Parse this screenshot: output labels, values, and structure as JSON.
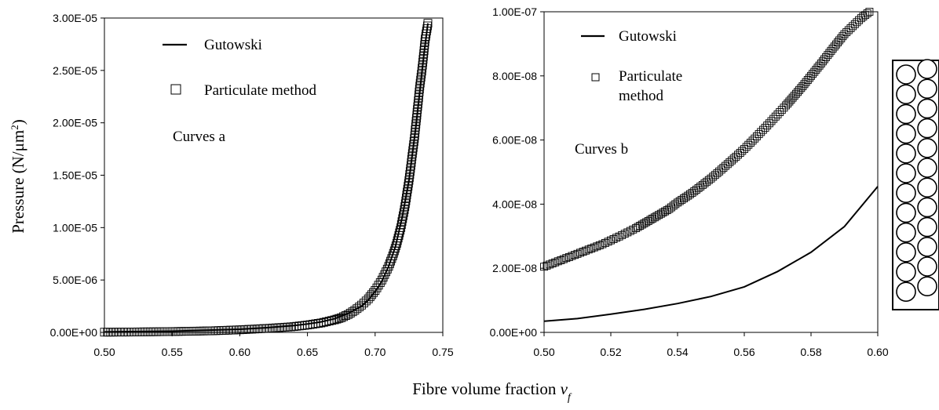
{
  "figure": {
    "xlabel_main": "Fibre volume fraction ",
    "xlabel_var": "v",
    "xlabel_sub": "f",
    "ylabel_main": "Pressure (N/μm",
    "ylabel_sup": "2",
    "ylabel_end": ")"
  },
  "chart_data": [
    {
      "type": "line",
      "annotation": "Curves a",
      "xlim": [
        0.5,
        0.75
      ],
      "ylim": [
        0,
        3e-05
      ],
      "xticks": [
        "0.50",
        "0.55",
        "0.60",
        "0.65",
        "0.70",
        "0.75"
      ],
      "yticks": [
        "0.00E+00",
        "5.00E-06",
        "1.00E-05",
        "1.50E-05",
        "2.00E-05",
        "2.50E-05",
        "3.00E-05"
      ],
      "grid": false,
      "legend_position": "top-left",
      "series": [
        {
          "name": "Gutowski",
          "style": "solid-line",
          "x": [
            0.5,
            0.55,
            0.6,
            0.62,
            0.64,
            0.65,
            0.66,
            0.67,
            0.68,
            0.69,
            0.695,
            0.7,
            0.705,
            0.71,
            0.715,
            0.72,
            0.725,
            0.73,
            0.733,
            0.736,
            0.739
          ],
          "y": [
            4.5e-08,
            1.1e-07,
            3e-07,
            4.5e-07,
            6.5e-07,
            8e-07,
            1e-06,
            1.3e-06,
            1.8e-06,
            2.5e-06,
            3.1e-06,
            3.9e-06,
            4.9e-06,
            6.3e-06,
            8.2e-06,
            1.1e-05,
            1.45e-05,
            1.95e-05,
            2.3e-05,
            2.65e-05,
            2.95e-05
          ]
        },
        {
          "name": "Particulate method",
          "style": "open-square-markers",
          "x": [
            0.5,
            0.52,
            0.55,
            0.58,
            0.6,
            0.62,
            0.64,
            0.65,
            0.66,
            0.67,
            0.675,
            0.68,
            0.685,
            0.69,
            0.695,
            0.7,
            0.705,
            0.71,
            0.713,
            0.716,
            0.719,
            0.722,
            0.725,
            0.727,
            0.729,
            0.731,
            0.733,
            0.735,
            0.737,
            0.739
          ],
          "y": [
            2.1e-08,
            3.5e-08,
            8e-08,
            1.5e-07,
            2.5e-07,
            3.8e-07,
            5.5e-07,
            7e-07,
            9e-07,
            1.2e-06,
            1.4e-06,
            1.7e-06,
            2.1e-06,
            2.6e-06,
            3.2e-06,
            4e-06,
            5e-06,
            6.3e-06,
            7.3e-06,
            8.5e-06,
            1e-05,
            1.2e-05,
            1.45e-05,
            1.65e-05,
            1.85e-05,
            2.1e-05,
            2.35e-05,
            2.55e-05,
            2.8e-05,
            2.95e-05
          ]
        }
      ]
    },
    {
      "type": "line",
      "annotation": "Curves b",
      "xlim": [
        0.5,
        0.6
      ],
      "ylim": [
        0,
        1e-07
      ],
      "xticks": [
        "0.50",
        "0.52",
        "0.54",
        "0.56",
        "0.58",
        "0.60"
      ],
      "yticks": [
        "0.00E+00",
        "2.00E-08",
        "4.00E-08",
        "6.00E-08",
        "8.00E-08",
        "1.00E-07"
      ],
      "grid": false,
      "legend_position": "top-left",
      "series": [
        {
          "name": "Gutowski",
          "style": "solid-line",
          "x": [
            0.5,
            0.51,
            0.52,
            0.53,
            0.54,
            0.55,
            0.56,
            0.57,
            0.58,
            0.59,
            0.6
          ],
          "y": [
            3.5e-09,
            4.3e-09,
            5.7e-09,
            7.2e-09,
            9e-09,
            1.12e-08,
            1.42e-08,
            1.9e-08,
            2.5e-08,
            3.3e-08,
            4.55e-08
          ]
        },
        {
          "name": "Particulate method",
          "style": "open-square-markers",
          "x": [
            0.5,
            0.5025,
            0.505,
            0.5075,
            0.51,
            0.5125,
            0.515,
            0.5175,
            0.52,
            0.5225,
            0.525,
            0.5275,
            0.53,
            0.5325,
            0.535,
            0.5375,
            0.54,
            0.5425,
            0.545,
            0.5475,
            0.55,
            0.5525,
            0.555,
            0.5575,
            0.56,
            0.5625,
            0.565,
            0.5675,
            0.57,
            0.5725,
            0.575,
            0.5775,
            0.58,
            0.5825,
            0.585,
            0.5875,
            0.59,
            0.5925,
            0.595,
            0.5975
          ],
          "y": [
            2.05e-08,
            2.15e-08,
            2.25e-08,
            2.35e-08,
            2.45e-08,
            2.55e-08,
            2.65e-08,
            2.75e-08,
            2.87e-08,
            2.99e-08,
            3.12e-08,
            3.25e-08,
            3.4e-08,
            3.55e-08,
            3.7e-08,
            3.85e-08,
            4.05e-08,
            4.22e-08,
            4.4e-08,
            4.6e-08,
            4.8e-08,
            5.02e-08,
            5.25e-08,
            5.48e-08,
            5.72e-08,
            5.98e-08,
            6.25e-08,
            6.52e-08,
            6.8e-08,
            7.08e-08,
            7.38e-08,
            7.68e-08,
            8e-08,
            8.32e-08,
            8.65e-08,
            8.98e-08,
            9.3e-08,
            9.55e-08,
            9.8e-08,
            1e-07
          ]
        }
      ]
    }
  ]
}
